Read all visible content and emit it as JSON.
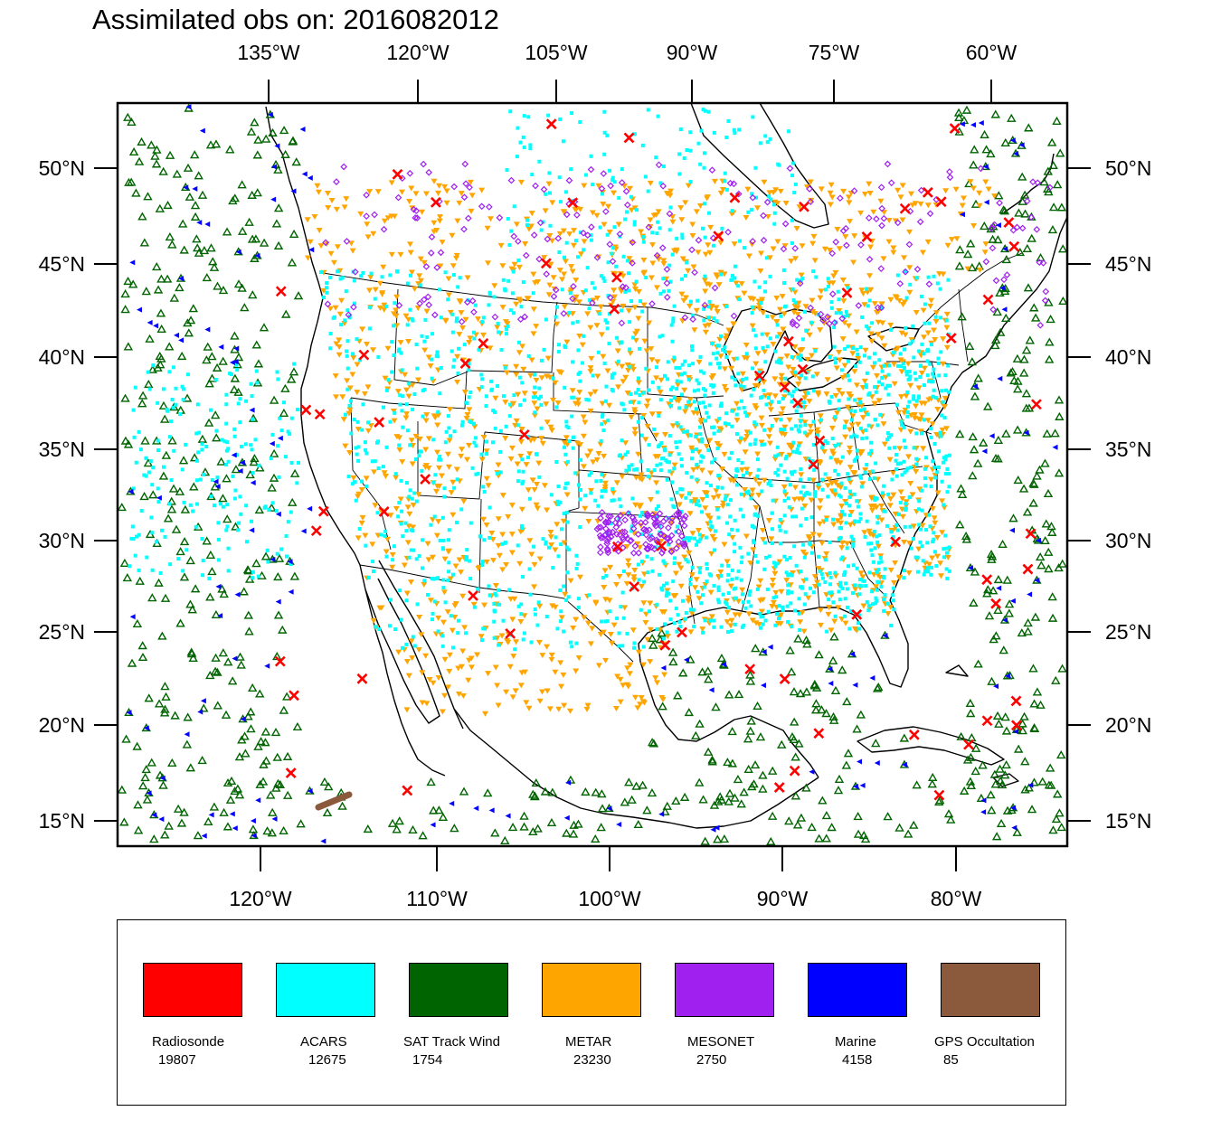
{
  "title": "Assimilated obs on: 2016082012",
  "axes": {
    "top_lon_labels": [
      "135°W",
      "120°W",
      "105°W",
      "90°W",
      "75°W",
      "60°W"
    ],
    "bottom_lon_labels": [
      "120°W",
      "110°W",
      "100°W",
      "90°W",
      "80°W"
    ],
    "lat_labels": [
      "50°N",
      "45°N",
      "40°N",
      "35°N",
      "30°N",
      "25°N",
      "20°N",
      "15°N"
    ]
  },
  "legend": [
    {
      "name": "Radiosonde",
      "count": "19807",
      "color": "#ff0000"
    },
    {
      "name": "ACARS",
      "count": "12675",
      "color": "#00ffff"
    },
    {
      "name": "SAT Track Wind",
      "count": "1754",
      "color": "#006400"
    },
    {
      "name": "METAR",
      "count": "23230",
      "color": "#ffa500"
    },
    {
      "name": "MESONET",
      "count": "2750",
      "color": "#a020f0"
    },
    {
      "name": "Marine",
      "count": "4158",
      "color": "#0000ff"
    },
    {
      "name": "GPS Occultation",
      "count": "85",
      "color": "#8b5a3c"
    }
  ],
  "colors": {
    "radiosonde": "#ff0000",
    "acars": "#00ffff",
    "sat_track_wind": "#006400",
    "metar": "#ffa500",
    "mesonet": "#a020f0",
    "marine": "#0000ff",
    "gps_occultation": "#8b5a3c"
  }
}
